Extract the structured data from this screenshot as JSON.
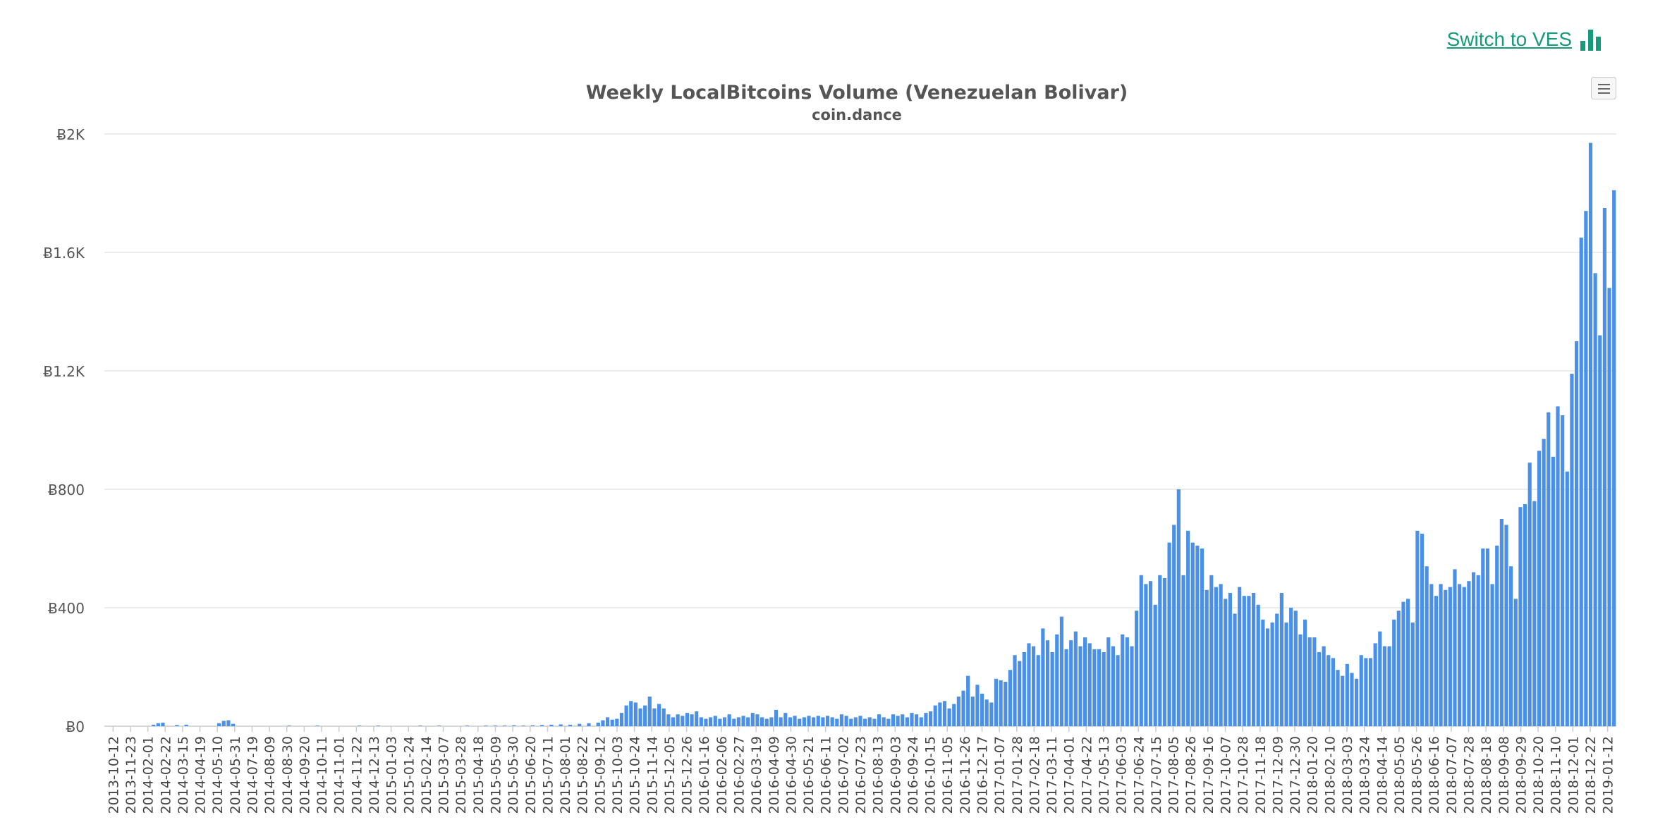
{
  "header": {
    "switch_label": "Switch to VES",
    "switch_icon": "bar-chart-icon",
    "accent_color": "#179a7c"
  },
  "chart_menu": {
    "icon": "hamburger-menu-icon"
  },
  "chart_data": {
    "type": "bar",
    "title": "Weekly LocalBitcoins Volume (Venezuelan Bolivar)",
    "subtitle": "coin.dance",
    "xlabel": "",
    "ylabel": "",
    "ylim": [
      0,
      2000
    ],
    "y_ticks": [
      "Ƀ0",
      "Ƀ400",
      "Ƀ800",
      "Ƀ1.2K",
      "Ƀ1.6K",
      "Ƀ2K"
    ],
    "x_tick_labels": [
      "2013-10-12",
      "2013-11-23",
      "2014-02-01",
      "2014-02-22",
      "2014-03-15",
      "2014-04-19",
      "2014-05-10",
      "2014-05-31",
      "2014-07-19",
      "2014-08-09",
      "2014-08-30",
      "2014-09-20",
      "2014-10-11",
      "2014-11-01",
      "2014-11-22",
      "2014-12-13",
      "2015-01-03",
      "2015-01-24",
      "2015-02-14",
      "2015-03-07",
      "2015-03-28",
      "2015-04-18",
      "2015-05-09",
      "2015-05-30",
      "2015-06-20",
      "2015-07-11",
      "2015-08-01",
      "2015-08-22",
      "2015-09-12",
      "2015-10-03",
      "2015-10-24",
      "2015-11-14",
      "2015-12-05",
      "2015-12-26",
      "2016-01-16",
      "2016-02-06",
      "2016-02-27",
      "2016-03-19",
      "2016-04-09",
      "2016-04-30",
      "2016-05-21",
      "2016-06-11",
      "2016-07-02",
      "2016-07-23",
      "2016-08-13",
      "2016-09-03",
      "2016-09-24",
      "2016-10-15",
      "2016-11-05",
      "2016-11-26",
      "2016-12-17",
      "2017-01-07",
      "2017-01-28",
      "2017-02-18",
      "2017-03-11",
      "2017-04-01",
      "2017-04-22",
      "2017-05-13",
      "2017-06-03",
      "2017-06-24",
      "2017-07-15",
      "2017-08-05",
      "2017-08-26",
      "2017-09-16",
      "2017-10-07",
      "2017-10-28",
      "2017-11-18",
      "2017-12-09",
      "2017-12-30",
      "2018-01-20",
      "2018-02-10",
      "2018-03-03",
      "2018-03-24",
      "2018-04-14",
      "2018-05-05",
      "2018-05-26",
      "2018-06-16",
      "2018-07-07",
      "2018-07-28",
      "2018-08-18",
      "2018-09-08",
      "2018-09-29",
      "2018-10-20",
      "2018-11-10",
      "2018-12-01",
      "2018-12-22",
      "2019-01-12"
    ],
    "bar_color": "#4a90e8",
    "grid": true,
    "values": [
      0,
      0,
      0,
      0,
      0,
      0,
      0,
      0,
      0,
      0,
      5,
      10,
      12,
      0,
      0,
      4,
      0,
      5,
      0,
      0,
      0,
      0,
      0,
      0,
      10,
      18,
      20,
      8,
      0,
      0,
      0,
      0,
      0,
      0,
      0,
      0,
      0,
      0,
      0,
      2,
      0,
      0,
      0,
      0,
      0,
      2,
      0,
      0,
      0,
      0,
      0,
      0,
      0,
      0,
      2,
      0,
      0,
      0,
      2,
      0,
      0,
      0,
      0,
      0,
      0,
      0,
      0,
      2,
      0,
      0,
      0,
      2,
      0,
      0,
      0,
      0,
      0,
      2,
      0,
      0,
      0,
      2,
      0,
      2,
      0,
      2,
      0,
      3,
      0,
      2,
      0,
      3,
      0,
      4,
      0,
      5,
      0,
      6,
      0,
      5,
      0,
      8,
      0,
      10,
      0,
      12,
      20,
      30,
      22,
      25,
      45,
      70,
      85,
      80,
      60,
      70,
      100,
      60,
      75,
      60,
      40,
      30,
      40,
      35,
      45,
      40,
      50,
      30,
      25,
      30,
      35,
      25,
      30,
      40,
      25,
      30,
      35,
      30,
      45,
      40,
      30,
      25,
      30,
      55,
      30,
      45,
      30,
      35,
      25,
      30,
      35,
      30,
      35,
      30,
      35,
      30,
      25,
      40,
      35,
      25,
      30,
      35,
      25,
      30,
      25,
      40,
      30,
      25,
      40,
      35,
      40,
      30,
      45,
      40,
      30,
      45,
      50,
      70,
      80,
      85,
      60,
      75,
      100,
      120,
      170,
      100,
      140,
      110,
      90,
      80,
      160,
      155,
      150,
      190,
      240,
      220,
      250,
      280,
      270,
      240,
      330,
      290,
      250,
      310,
      370,
      260,
      290,
      320,
      270,
      300,
      280,
      260,
      260,
      250,
      300,
      270,
      240,
      310,
      300,
      270,
      390,
      510,
      480,
      490,
      410,
      510,
      500,
      620,
      680,
      800,
      510,
      660,
      620,
      610,
      600,
      460,
      510,
      470,
      480,
      430,
      450,
      380,
      470,
      440,
      440,
      450,
      410,
      360,
      330,
      350,
      380,
      450,
      350,
      400,
      390,
      310,
      360,
      300,
      300,
      250,
      270,
      240,
      230,
      190,
      170,
      210,
      180,
      160,
      240,
      230,
      230,
      280,
      320,
      270,
      270,
      360,
      390,
      420,
      430,
      350,
      660,
      650,
      540,
      480,
      440,
      480,
      460,
      470,
      530,
      480,
      470,
      490,
      520,
      510,
      600,
      600,
      480,
      610,
      700,
      680,
      540,
      430,
      740,
      750,
      890,
      760,
      930,
      970,
      1060,
      910,
      1080,
      1050,
      860,
      1190,
      1300,
      1650,
      1740,
      1970,
      1530,
      1320,
      1750,
      1480,
      1810
    ]
  }
}
